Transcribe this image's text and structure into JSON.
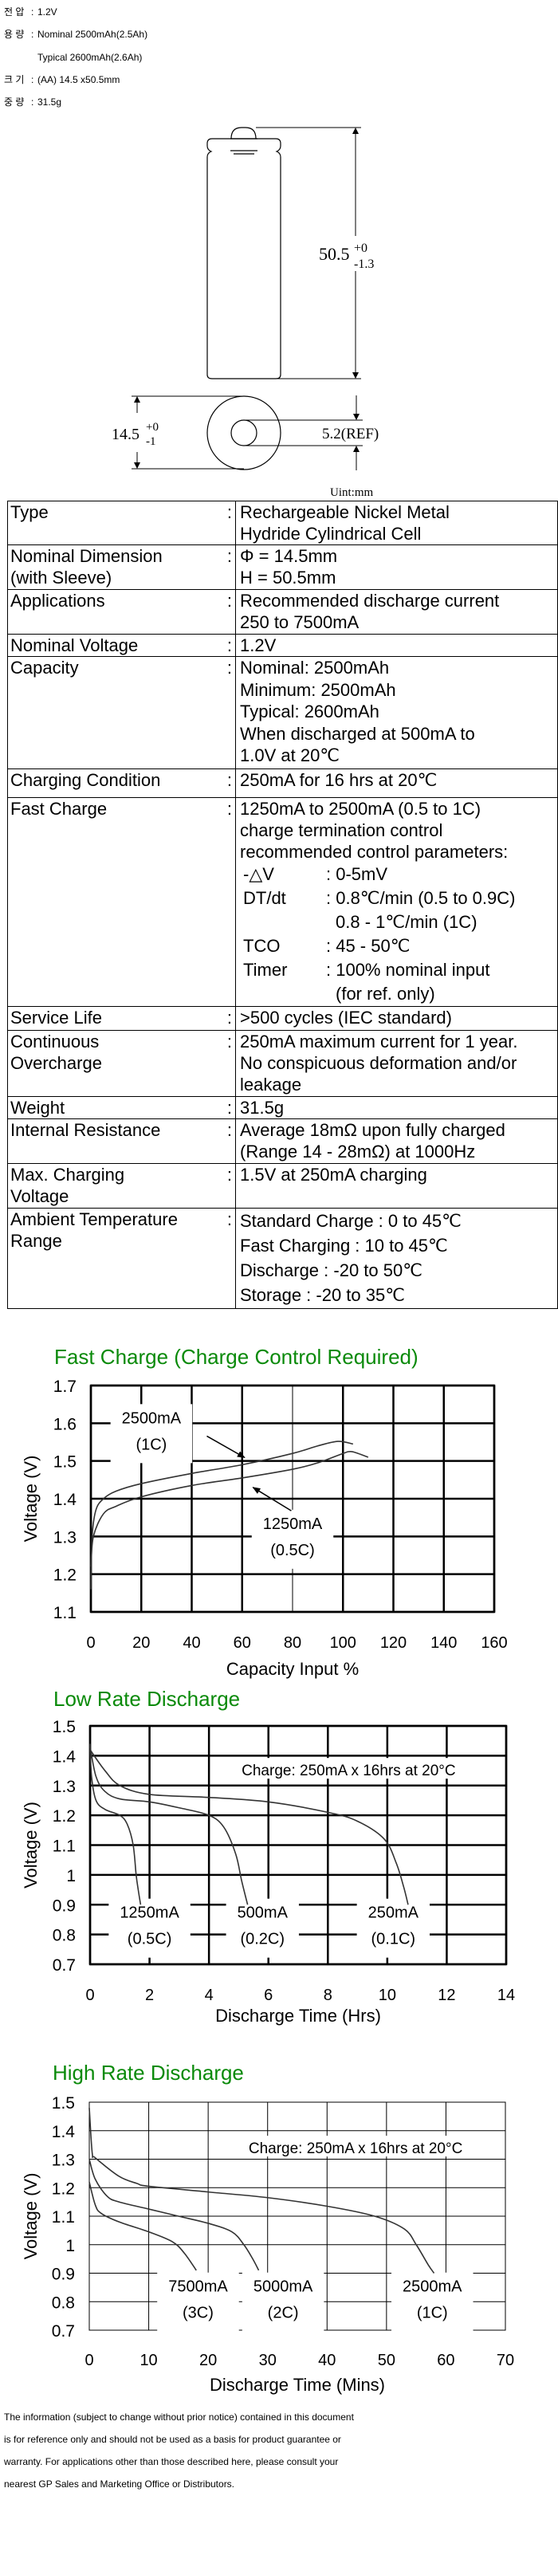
{
  "header": [
    {
      "label": "전 압",
      "sep": ":",
      "value": "1.2V"
    },
    {
      "label": "용 량",
      "sep": ":",
      "value": "Nominal 2500mAh(2.5Ah)"
    },
    {
      "label": "",
      "sep": "",
      "value": "Typical 2600mAh(2.6Ah)"
    },
    {
      "label": "크 기",
      "sep": ":",
      "value": "(AA) 14.5 x50.5mm"
    },
    {
      "label": "중 량",
      "sep": ":",
      "value": "31.5g"
    }
  ],
  "diagram": {
    "height_value": "50.5",
    "height_tol_plus": "+0",
    "height_tol_minus": "-1.3",
    "diameter_value": "14.5",
    "diameter_tol_plus": "+0",
    "diameter_tol_minus": "-1",
    "hole_value": "5.2(REF)",
    "unit": "Uint:mm"
  },
  "spec_table": {
    "separator": ":",
    "rows": [
      {
        "label": [
          "Type"
        ],
        "value": [
          "Rechargeable Nickel Metal",
          "Hydride Cylindrical Cell"
        ]
      },
      {
        "label": [
          "Nominal Dimension",
          "(with Sleeve)"
        ],
        "value": [
          "Φ = 14.5mm",
          "H = 50.5mm"
        ]
      },
      {
        "label": [
          "Applications"
        ],
        "value": [
          "Recommended discharge current",
          "250 to 7500mA"
        ]
      },
      {
        "label": [
          "Nominal Voltage"
        ],
        "value": [
          "1.2V"
        ]
      },
      {
        "label": [
          "Capacity"
        ],
        "value": [
          "Nominal: 2500mAh",
          "Minimum: 2500mAh",
          "Typical: 2600mAh",
          "When discharged at 500mA to",
          "1.0V at 20℃"
        ]
      },
      {
        "label": [
          "Charging Condition"
        ],
        "value": [
          "250mA for 16 hrs at 20℃"
        ]
      },
      {
        "label": [
          "Fast Charge"
        ],
        "value": [
          "1250mA to 2500mA (0.5 to 1C)",
          "charge termination control",
          "recommended control parameters:"
        ],
        "params": [
          {
            "name": "-△V",
            "value": ": 0-5mV",
            "continuation": false
          },
          {
            "name": "DT/dt",
            "value": ": 0.8℃/min (0.5 to 0.9C)",
            "continuation": false
          },
          {
            "name": "",
            "value": "0.8 - 1℃/min (1C)",
            "continuation": true
          },
          {
            "name": "TCO",
            "value": ": 45 - 50℃",
            "continuation": false
          },
          {
            "name": "Timer",
            "value": ": 100% nominal input",
            "continuation": false
          },
          {
            "name": "",
            "value": "(for ref. only)",
            "continuation": true
          }
        ]
      },
      {
        "label": [
          "Service Life"
        ],
        "value": [
          ">500 cycles (IEC standard)"
        ]
      },
      {
        "label": [
          "Continuous",
          "Overcharge"
        ],
        "value": [
          "250mA maximum current for 1 year.",
          "No conspicuous deformation and/or",
          "leakage"
        ]
      },
      {
        "label": [
          "Weight"
        ],
        "value": [
          "31.5g"
        ]
      },
      {
        "label": [
          "Internal Resistance"
        ],
        "value": [
          "Average 18mΩ upon fully charged",
          "(Range 14 - 28mΩ) at 1000Hz"
        ]
      },
      {
        "label": [
          "Max. Charging",
          "Voltage"
        ],
        "value": [
          "1.5V at 250mA charging"
        ]
      },
      {
        "label": [
          "Ambient Temperature",
          "Range"
        ],
        "value": [
          "Standard Charge : 0 to 45℃",
          "Fast Charging : 10 to 45℃",
          "Discharge : -20 to 50℃",
          "Storage : -20 to 35℃"
        ]
      }
    ]
  },
  "colors": {
    "chart_title": "#0a8a0a",
    "grid": "#000000",
    "curve": "#333333"
  },
  "chart_data": [
    {
      "type": "line",
      "title": "Fast Charge (Charge Control Required)",
      "xlabel": "Capacity Input %",
      "ylabel": "Voltage (V)",
      "xlim": [
        0,
        160
      ],
      "ylim": [
        1.1,
        1.7
      ],
      "xticks": [
        0,
        20,
        40,
        60,
        80,
        100,
        120,
        140,
        160
      ],
      "yticks": [
        "1.1",
        "1.2",
        "1.3",
        "1.4",
        "1.5",
        "1.6",
        "1.7"
      ],
      "grid": true,
      "series": [
        {
          "name": "2500mA (1C)",
          "x": [
            0,
            0.5,
            2,
            5,
            10,
            20,
            40,
            60,
            80,
            90,
            98,
            104
          ],
          "y": [
            1.16,
            1.3,
            1.37,
            1.4,
            1.42,
            1.44,
            1.467,
            1.49,
            1.52,
            1.54,
            1.552,
            1.545
          ]
        },
        {
          "name": "1250mA (0.5C)",
          "x": [
            0,
            1,
            5,
            10,
            20,
            40,
            60,
            80,
            90,
            100,
            103,
            106,
            110
          ],
          "y": [
            1.22,
            1.3,
            1.36,
            1.38,
            1.405,
            1.435,
            1.455,
            1.478,
            1.495,
            1.52,
            1.525,
            1.52,
            1.51
          ]
        }
      ],
      "annotations": [
        {
          "lines": [
            "2500mA",
            "(1C)"
          ],
          "x": 24,
          "y": 1.6,
          "arrow_from": [
            46,
            1.566
          ],
          "arrow_to": [
            61,
            1.509
          ]
        },
        {
          "lines": [
            "1250mA",
            "(0.5C)"
          ],
          "x": 80,
          "y": 1.32,
          "arrow_from": [
            79.5,
            1.368
          ],
          "arrow_to": [
            64.3,
            1.43
          ]
        }
      ]
    },
    {
      "type": "line",
      "title": "Low Rate Discharge",
      "xlabel": "Discharge Time (Hrs)",
      "ylabel": "Voltage (V)",
      "xlim": [
        0,
        14
      ],
      "ylim": [
        0.7,
        1.5
      ],
      "xticks": [
        0,
        2,
        4,
        6,
        8,
        10,
        12,
        14
      ],
      "yticks": [
        "0.7",
        "0.8",
        "0.9",
        "1",
        "1.1",
        "1.2",
        "1.3",
        "1.4",
        "1.5"
      ],
      "grid": true,
      "note": "Charge: 250mA x 16hrs at 20°C",
      "series": [
        {
          "name": "1250mA (0.5C)",
          "x": [
            0,
            0.05,
            0.2,
            0.5,
            1,
            1.25,
            1.45,
            1.55,
            1.62,
            1.7
          ],
          "y": [
            1.44,
            1.33,
            1.25,
            1.22,
            1.2,
            1.17,
            1.1,
            1.0,
            0.95,
            0.9
          ]
        },
        {
          "name": "500mA (0.2C)",
          "x": [
            0,
            0.2,
            0.5,
            1,
            2,
            3,
            4,
            4.5,
            4.9,
            5.1,
            5.3
          ],
          "y": [
            1.43,
            1.33,
            1.28,
            1.255,
            1.245,
            1.225,
            1.2,
            1.16,
            1.07,
            0.98,
            0.9
          ]
        },
        {
          "name": "250mA (0.1C)",
          "x": [
            0,
            0.5,
            1,
            2,
            4,
            6,
            8,
            9,
            9.9,
            10.3,
            10.55,
            10.7
          ],
          "y": [
            1.42,
            1.35,
            1.3,
            1.27,
            1.26,
            1.245,
            1.21,
            1.18,
            1.12,
            1.04,
            0.96,
            0.9
          ]
        }
      ],
      "annotations": [
        {
          "lines": [
            "1250mA",
            "(0.5C)"
          ],
          "x": 2.0,
          "y": 0.856
        },
        {
          "lines": [
            "500mA",
            "(0.2C)"
          ],
          "x": 5.8,
          "y": 0.856
        },
        {
          "lines": [
            "250mA",
            "(0.1C)"
          ],
          "x": 10.2,
          "y": 0.856
        }
      ]
    },
    {
      "type": "line",
      "title": "High Rate Discharge",
      "xlabel": "Discharge Time (Mins)",
      "ylabel": "Voltage (V)",
      "xlim": [
        0,
        70
      ],
      "ylim": [
        0.7,
        1.5
      ],
      "xticks": [
        0,
        10,
        20,
        30,
        40,
        50,
        60,
        70
      ],
      "yticks": [
        "0.7",
        "0.8",
        "0.9",
        "1",
        "1.1",
        "1.2",
        "1.3",
        "1.4",
        "1.5"
      ],
      "grid": true,
      "note": "Charge: 250mA x 16hrs at 20°C",
      "series": [
        {
          "name": "7500mA (3C)",
          "x": [
            0,
            1,
            2,
            5,
            10,
            14,
            16,
            18
          ],
          "y": [
            1.22,
            1.14,
            1.11,
            1.08,
            1.045,
            1.01,
            0.97,
            0.91
          ]
        },
        {
          "name": "5000mA (2C)",
          "x": [
            0,
            1,
            3,
            5,
            10,
            15,
            20,
            24,
            26,
            27.5,
            28.5
          ],
          "y": [
            1.3,
            1.23,
            1.17,
            1.15,
            1.125,
            1.1,
            1.075,
            1.045,
            1.0,
            0.95,
            0.91
          ]
        },
        {
          "name": "2500mA (1C)",
          "x": [
            0,
            0.5,
            1,
            5,
            8,
            10,
            20,
            30,
            40,
            48,
            53,
            55,
            57,
            58
          ],
          "y": [
            1.48,
            1.32,
            1.305,
            1.24,
            1.215,
            1.205,
            1.185,
            1.165,
            1.135,
            1.1,
            1.055,
            1.0,
            0.93,
            0.9
          ]
        }
      ],
      "annotations": [
        {
          "lines": [
            "7500mA",
            "(3C)"
          ],
          "x": 18.3,
          "y": 0.835
        },
        {
          "lines": [
            "5000mA",
            "(2C)"
          ],
          "x": 32.6,
          "y": 0.835
        },
        {
          "lines": [
            "2500mA",
            "(1C)"
          ],
          "x": 57.7,
          "y": 0.835
        }
      ]
    }
  ],
  "footer": [
    "The information (subject to change without prior notice) contained in this document",
    "is for reference only and should not be used as a basis for product guarantee or",
    "warranty. For applications other than those described here, please consult your",
    "nearest GP Sales and Marketing Office or Distributors."
  ]
}
